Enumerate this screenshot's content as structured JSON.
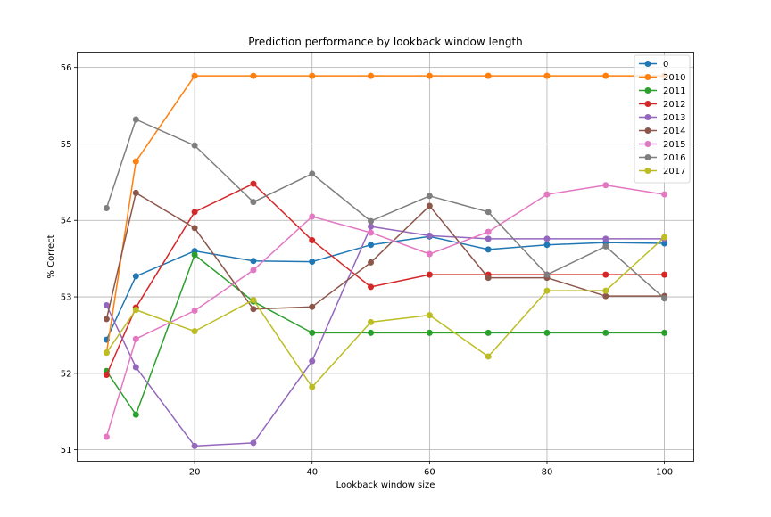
{
  "chart_data": {
    "type": "line",
    "title": "Prediction performance by lookback window length",
    "xlabel": "Lookback window size",
    "ylabel": "% Correct",
    "x": [
      5,
      10,
      20,
      30,
      40,
      50,
      60,
      70,
      80,
      90,
      100
    ],
    "xlim": [
      0,
      105
    ],
    "ylim": [
      50.85,
      56.2
    ],
    "xticks": [
      20,
      40,
      60,
      80,
      100
    ],
    "yticks": [
      51,
      52,
      53,
      54,
      55,
      56
    ],
    "grid": true,
    "legend_position": "top-right",
    "series": [
      {
        "name": "0",
        "color": "#1f77b4",
        "values": [
          52.44,
          53.27,
          53.6,
          53.47,
          53.46,
          53.68,
          53.79,
          53.62,
          53.68,
          53.71,
          53.7
        ]
      },
      {
        "name": "2010",
        "color": "#ff7f0e",
        "values": [
          52.27,
          54.77,
          55.89,
          55.89,
          55.89,
          55.89,
          55.89,
          55.89,
          55.89,
          55.89,
          55.89
        ]
      },
      {
        "name": "2011",
        "color": "#2ca02c",
        "values": [
          52.03,
          51.46,
          53.55,
          52.94,
          52.53,
          52.53,
          52.53,
          52.53,
          52.53,
          52.53,
          52.53
        ]
      },
      {
        "name": "2012",
        "color": "#d62728",
        "values": [
          51.98,
          52.86,
          54.11,
          54.48,
          53.74,
          53.13,
          53.29,
          53.29,
          53.29,
          53.29,
          53.29
        ]
      },
      {
        "name": "2013",
        "color": "#9467bd",
        "values": [
          52.89,
          52.08,
          51.05,
          51.09,
          52.16,
          53.92,
          53.8,
          53.76,
          53.76,
          53.76,
          53.76
        ]
      },
      {
        "name": "2014",
        "color": "#8c564b",
        "values": [
          52.71,
          54.36,
          53.9,
          52.84,
          52.87,
          53.45,
          54.19,
          53.25,
          53.25,
          53.01,
          53.01
        ]
      },
      {
        "name": "2015",
        "color": "#e377c2",
        "values": [
          51.17,
          52.45,
          52.82,
          53.35,
          54.05,
          53.84,
          53.56,
          53.85,
          54.34,
          54.46,
          54.34
        ]
      },
      {
        "name": "2016",
        "color": "#7f7f7f",
        "values": [
          54.16,
          55.32,
          54.98,
          54.24,
          54.61,
          53.99,
          54.32,
          54.11,
          53.29,
          53.66,
          52.98
        ]
      },
      {
        "name": "2017",
        "color": "#bcbd22",
        "values": [
          52.27,
          52.83,
          52.55,
          52.96,
          51.82,
          52.67,
          52.76,
          52.22,
          53.08,
          53.08,
          53.78
        ]
      }
    ]
  }
}
